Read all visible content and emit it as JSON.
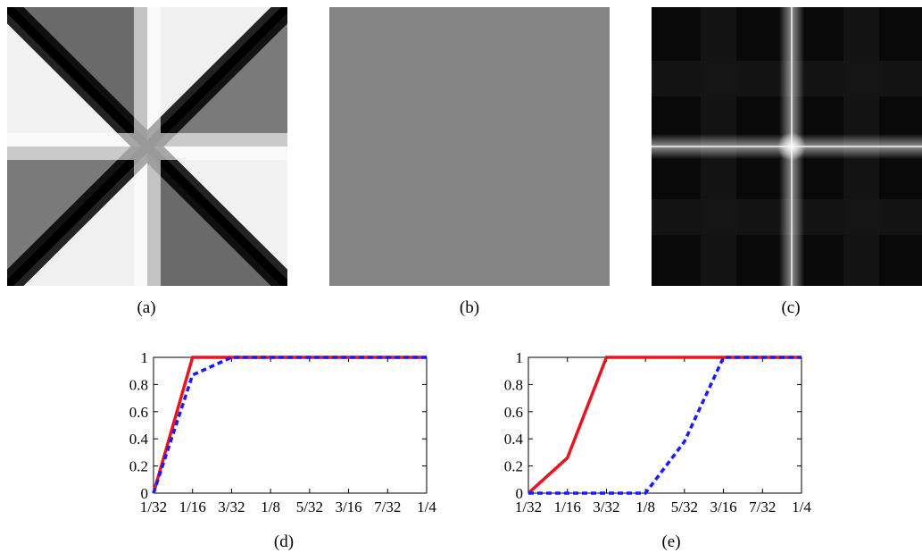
{
  "captions": {
    "a": "(a)",
    "b": "(b)",
    "c": "(c)",
    "d": "(d)",
    "e": "(e)"
  },
  "panel_b_gray": "#858585",
  "colors": {
    "red": "#e8141e",
    "blue": "#1a1aff"
  },
  "chart_data": [
    {
      "type": "line",
      "panel": "(d)",
      "categories": [
        "1/32",
        "1/16",
        "3/32",
        "1/8",
        "5/32",
        "3/16",
        "7/32",
        "1/4"
      ],
      "x": [
        0.03125,
        0.0625,
        0.09375,
        0.125,
        0.15625,
        0.1875,
        0.21875,
        0.25
      ],
      "xlim": [
        0.03125,
        0.25
      ],
      "ylim": [
        0,
        1
      ],
      "yticks": [
        "0",
        "0.2",
        "0.4",
        "0.6",
        "0.8",
        "1"
      ],
      "grid": false,
      "series": [
        {
          "color": "#e8141e",
          "style": "solid",
          "values": [
            0,
            1,
            1,
            1,
            1,
            1,
            1,
            1
          ]
        },
        {
          "color": "#1a1aff",
          "style": "dashed",
          "values": [
            0,
            0.87,
            1,
            1,
            1,
            1,
            1,
            1
          ]
        }
      ]
    },
    {
      "type": "line",
      "panel": "(e)",
      "categories": [
        "1/32",
        "1/16",
        "3/32",
        "1/8",
        "5/32",
        "3/16",
        "7/32",
        "1/4"
      ],
      "x": [
        0.03125,
        0.0625,
        0.09375,
        0.125,
        0.15625,
        0.1875,
        0.21875,
        0.25
      ],
      "xlim": [
        0.03125,
        0.25
      ],
      "ylim": [
        0,
        1
      ],
      "yticks": [
        "0",
        "0.2",
        "0.4",
        "0.6",
        "0.8",
        "1"
      ],
      "grid": false,
      "series": [
        {
          "color": "#e8141e",
          "style": "solid",
          "values": [
            0,
            0.26,
            1,
            1,
            1,
            1,
            1,
            1
          ]
        },
        {
          "color": "#1a1aff",
          "style": "dashed",
          "values": [
            0,
            0,
            0,
            0,
            0.38,
            1,
            1,
            1
          ]
        }
      ]
    }
  ]
}
